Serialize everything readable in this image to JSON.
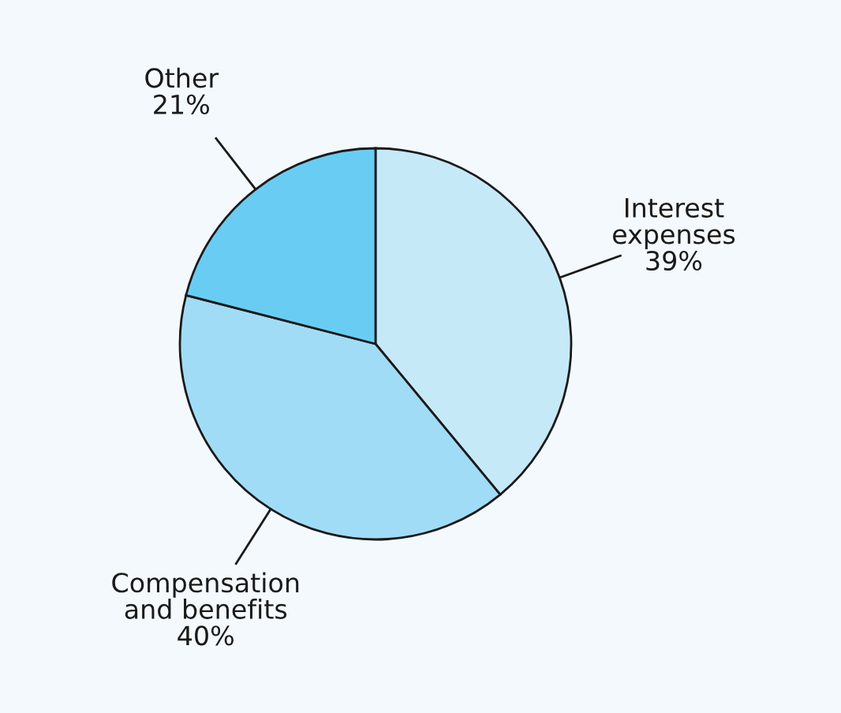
{
  "chart_data": {
    "type": "pie",
    "categories": [
      "Interest\nexpenses",
      "Compensation\nand benefits",
      "Other"
    ],
    "values": [
      39,
      40,
      21
    ],
    "colors": [
      "#c6e9f8",
      "#a1dcf6",
      "#69cdf3"
    ],
    "value_labels": [
      "39%",
      "40%",
      "21%"
    ]
  }
}
